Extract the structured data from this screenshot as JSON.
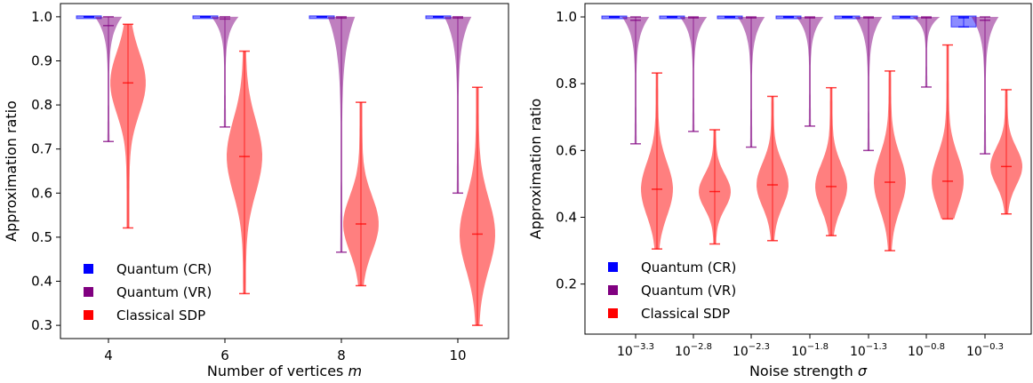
{
  "chart_data": [
    {
      "type": "violin",
      "xlabel": "Number of vertices ",
      "xlabel_var": "m",
      "ylabel": "Approximation ratio",
      "categories": [
        "4",
        "6",
        "8",
        "10"
      ],
      "ylim": [
        0.27,
        1.03
      ],
      "yticks": [
        "0.3",
        "0.4",
        "0.5",
        "0.6",
        "0.7",
        "0.8",
        "0.9",
        "1.0"
      ],
      "ytick_values": [
        0.3,
        0.4,
        0.5,
        0.6,
        0.7,
        0.8,
        0.9,
        1.0
      ],
      "legend_position": "lower-left",
      "series": [
        {
          "name": "Quantum (CR)",
          "color": "#0000ff",
          "min": [
            0.9995,
            0.9995,
            0.9995,
            0.9995
          ],
          "max": [
            1.0,
            1.0,
            1.0,
            1.0
          ],
          "median": [
            1.0,
            1.0,
            1.0,
            1.0
          ]
        },
        {
          "name": "Quantum (VR)",
          "color": "#800080",
          "min": [
            0.717,
            0.75,
            0.466,
            0.6
          ],
          "max": [
            1.0,
            1.0,
            1.0,
            1.0
          ],
          "median": [
            0.98,
            0.995,
            0.997,
            0.997
          ]
        },
        {
          "name": "Classical SDP",
          "color": "#ff0000",
          "min": [
            0.521,
            0.372,
            0.39,
            0.3
          ],
          "max": [
            0.983,
            0.922,
            0.806,
            0.84
          ],
          "median": [
            0.85,
            0.683,
            0.53,
            0.507
          ]
        }
      ]
    },
    {
      "type": "violin",
      "xlabel": "Noise strength ",
      "xlabel_var": "σ",
      "ylabel": "Approximation ratio",
      "categories": [
        "−3.3",
        "−2.8",
        "−2.3",
        "−1.8",
        "−1.3",
        "−0.8",
        "−0.3"
      ],
      "category_base": "10",
      "ylim": [
        0.05,
        1.04
      ],
      "yticks": [
        "0.2",
        "0.4",
        "0.6",
        "0.8",
        "1.0"
      ],
      "ytick_values": [
        0.2,
        0.4,
        0.6,
        0.8,
        1.0
      ],
      "legend_position": "lower-left",
      "series": [
        {
          "name": "Quantum (CR)",
          "color": "#0000ff",
          "min": [
            0.999,
            0.999,
            0.999,
            0.999,
            0.999,
            0.999,
            0.97
          ],
          "max": [
            1.0,
            1.0,
            1.0,
            1.0,
            1.0,
            1.0,
            1.0
          ],
          "median": [
            1.0,
            1.0,
            1.0,
            1.0,
            1.0,
            1.0,
            0.997
          ]
        },
        {
          "name": "Quantum (VR)",
          "color": "#800080",
          "min": [
            0.62,
            0.657,
            0.61,
            0.673,
            0.6,
            0.79,
            0.59
          ],
          "max": [
            1.0,
            1.0,
            1.0,
            1.0,
            1.0,
            1.0,
            1.0
          ],
          "median": [
            0.99,
            0.997,
            0.997,
            0.997,
            0.997,
            0.997,
            0.99
          ]
        },
        {
          "name": "Classical SDP",
          "color": "#ff0000",
          "min": [
            0.305,
            0.32,
            0.33,
            0.345,
            0.3,
            0.395,
            0.41
          ],
          "max": [
            0.832,
            0.662,
            0.762,
            0.788,
            0.838,
            0.916,
            0.782
          ],
          "median": [
            0.484,
            0.477,
            0.497,
            0.492,
            0.505,
            0.508,
            0.552
          ]
        }
      ]
    }
  ]
}
